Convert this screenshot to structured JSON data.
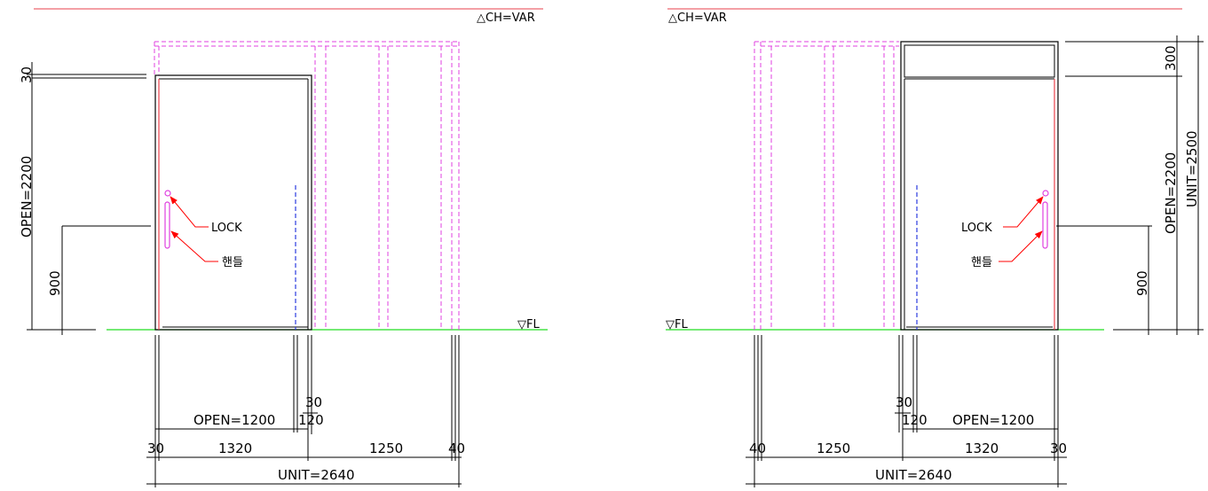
{
  "colors": {
    "ceiling_line": "#e8414b",
    "floor_line": "#22dd22",
    "hidden_panel": "#e040e0",
    "swing_line": "#2b3be0",
    "leader_arrow": "#ff0000",
    "handle": "#e040e0",
    "outline": "#000000"
  },
  "left": {
    "ch_label": "△CH=VAR",
    "fl_label": "▽FL",
    "lock_label": "LOCK",
    "handle_label": "핸들",
    "vert_dims": {
      "top_gap": "30",
      "open_height": "OPEN=2200",
      "handle_height": "900"
    },
    "horiz_dims": {
      "small_30": "30",
      "open_width": "OPEN=1200",
      "small_120": "120",
      "frame_30": "30",
      "door_1320": "1320",
      "panel_1250": "1250",
      "frame_40": "40",
      "unit_width": "UNIT=2640"
    }
  },
  "right": {
    "ch_label": "△CH=VAR",
    "fl_label": "▽FL",
    "lock_label": "LOCK",
    "handle_label": "핸들",
    "vert_dims": {
      "transom": "300",
      "open_height": "OPEN=2200",
      "unit_height": "UNIT=2500",
      "handle_height": "900"
    },
    "horiz_dims": {
      "small_30": "30",
      "small_120": "120",
      "open_width": "OPEN=1200",
      "frame_40": "40",
      "panel_1250": "1250",
      "door_1320": "1320",
      "frame_30": "30",
      "unit_width": "UNIT=2640"
    }
  }
}
